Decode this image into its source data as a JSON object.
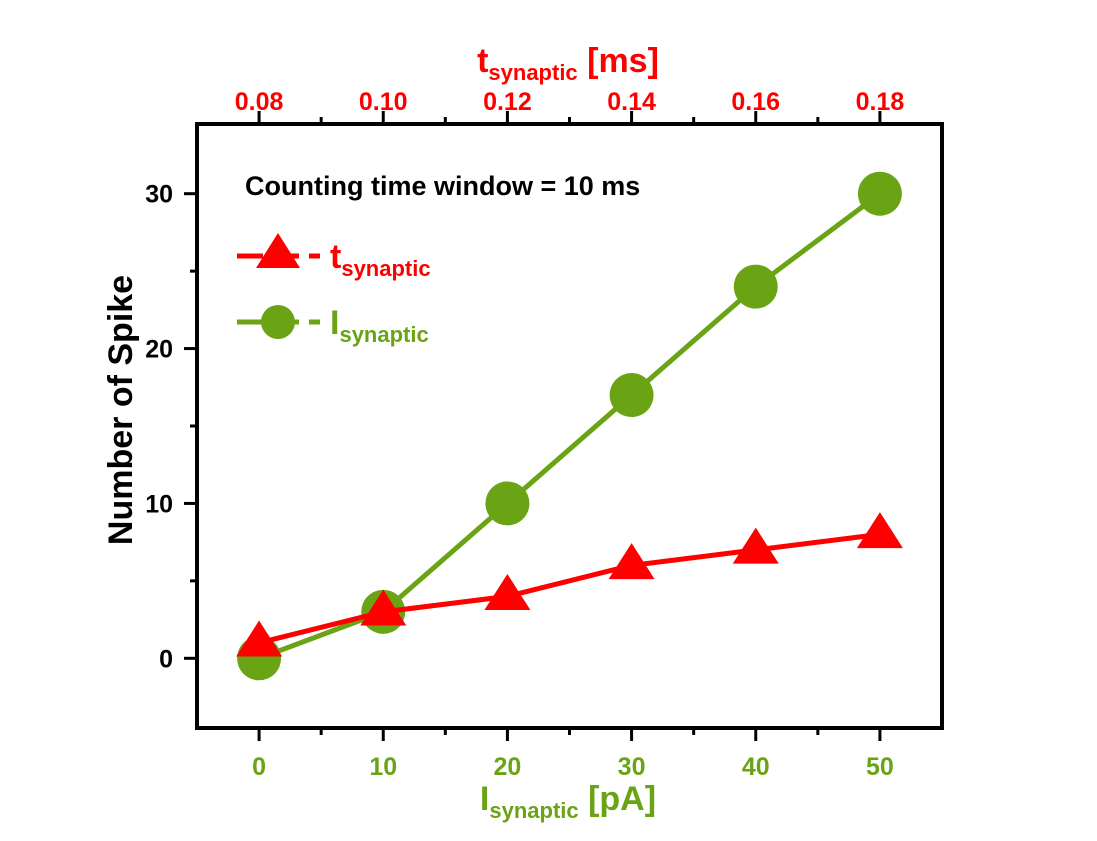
{
  "chart_data": {
    "type": "line",
    "annotation": "Counting time window = 10 ms",
    "colors": {
      "red": "#ff0000",
      "green": "#6aa415",
      "black": "#000000"
    },
    "x_bottom": {
      "label_main": "I",
      "label_sub": "synaptic",
      "label_unit": " [pA]",
      "ticks": [
        "0",
        "10",
        "20",
        "30",
        "40",
        "50"
      ],
      "range": [
        -5,
        55
      ]
    },
    "x_top": {
      "label_main": "t",
      "label_sub": "synaptic",
      "label_unit": " [ms]",
      "ticks": [
        "0.08",
        "0.10",
        "0.12",
        "0.14",
        "0.16",
        "0.18"
      ],
      "range": [
        0.07,
        0.19
      ]
    },
    "y": {
      "label": "Number of Spike",
      "ticks": [
        "0",
        "10",
        "20",
        "30"
      ],
      "range": [
        -4.5,
        34.5
      ]
    },
    "series": [
      {
        "name_main": "t",
        "name_sub": "synaptic",
        "axis": "top",
        "marker": "triangle",
        "color": "#ff0000",
        "x": [
          0.08,
          0.1,
          0.12,
          0.14,
          0.16,
          0.18
        ],
        "y": [
          1,
          3,
          4,
          6,
          7,
          8
        ]
      },
      {
        "name_main": "I",
        "name_sub": "synaptic",
        "axis": "bottom",
        "marker": "circle",
        "color": "#6aa415",
        "x": [
          0,
          10,
          20,
          30,
          40,
          50
        ],
        "y": [
          0,
          3,
          10,
          17,
          24,
          30
        ]
      }
    ],
    "grid": false,
    "legend_position": "top-left"
  }
}
